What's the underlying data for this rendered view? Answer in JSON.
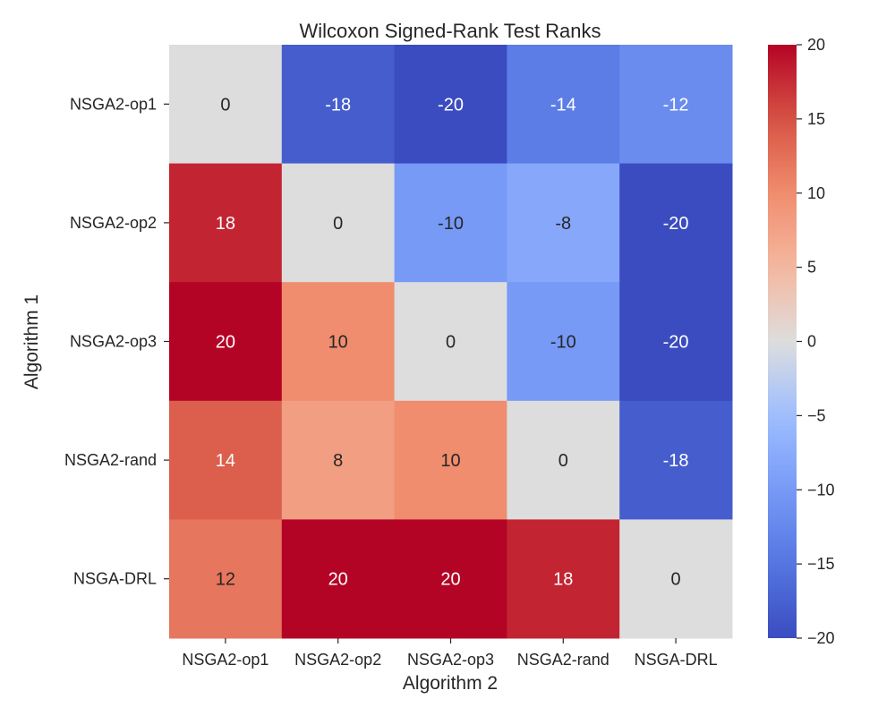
{
  "chart_data": {
    "type": "heatmap",
    "title": "Wilcoxon Signed-Rank Test Ranks",
    "xlabel": "Algorithm 2",
    "ylabel": "Algorithm 1",
    "x_categories": [
      "NSGA2-op1",
      "NSGA2-op2",
      "NSGA2-op3",
      "NSGA2-rand",
      "NSGA-DRL"
    ],
    "y_categories": [
      "NSGA2-op1",
      "NSGA2-op2",
      "NSGA2-op3",
      "NSGA2-rand",
      "NSGA-DRL"
    ],
    "values": [
      [
        0,
        -18,
        -20,
        -14,
        -12
      ],
      [
        18,
        0,
        -10,
        -8,
        -20
      ],
      [
        20,
        10,
        0,
        -10,
        -20
      ],
      [
        14,
        8,
        10,
        0,
        -18
      ],
      [
        12,
        20,
        20,
        18,
        0
      ]
    ],
    "colorbar": {
      "min": -20,
      "max": 20,
      "ticks": [
        20,
        15,
        10,
        5,
        0,
        -5,
        -10,
        -15,
        -20
      ],
      "tick_labels": [
        "20",
        "15",
        "10",
        "5",
        "0",
        "−5",
        "−10",
        "−15",
        "−20"
      ],
      "colormap": "coolwarm"
    },
    "grid": false
  }
}
